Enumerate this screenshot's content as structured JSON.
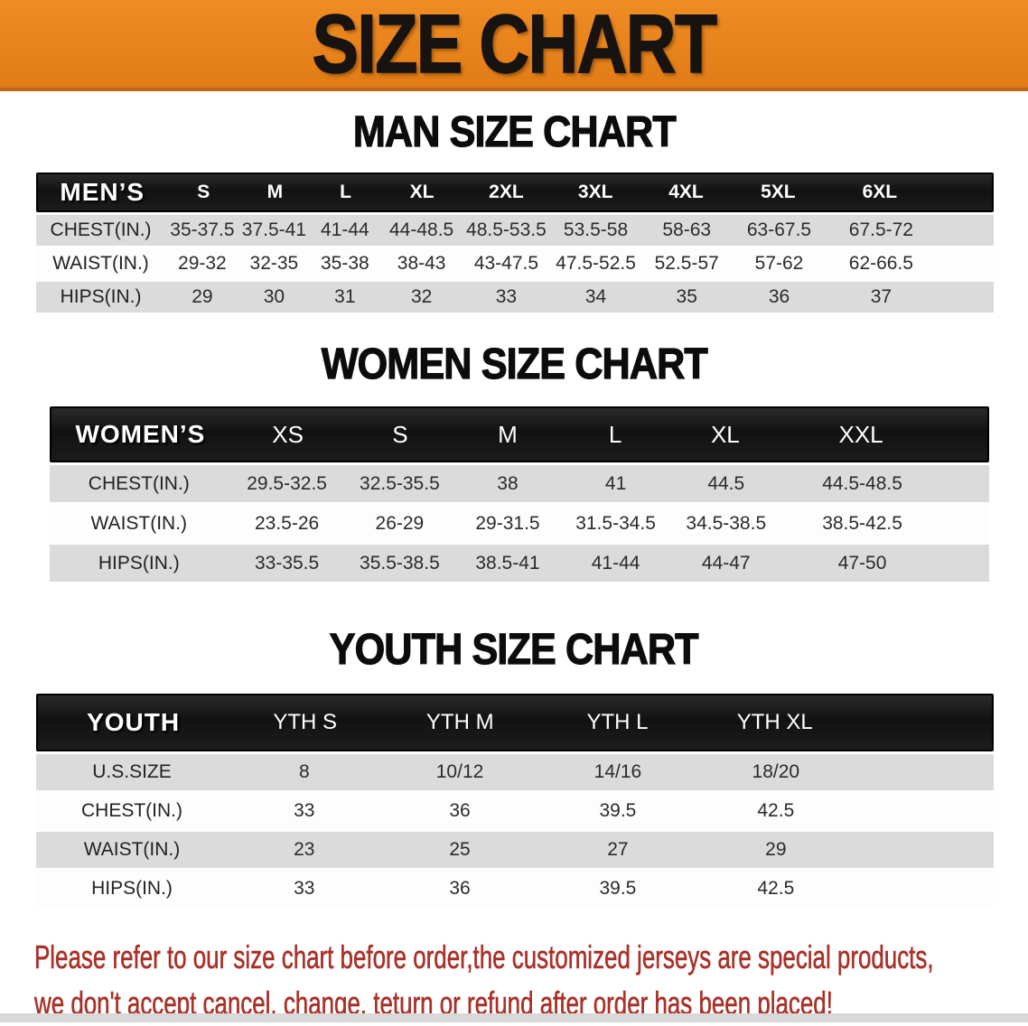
{
  "banner": {
    "title": "SIZE CHART",
    "bg_color": "#E8821B",
    "text_color": "#161310"
  },
  "sections": [
    {
      "id": "man",
      "title": "MAN SIZE CHART",
      "table": {
        "header": {
          "label": "MEN’S",
          "sizes": [
            "S",
            "M",
            "L",
            "XL",
            "2XL",
            "3XL",
            "4XL",
            "5XL",
            "6XL"
          ]
        },
        "rows": [
          {
            "label": "CHEST(IN.)",
            "values": [
              "35-37.5",
              "37.5-41",
              "41-44",
              "44-48.5",
              "48.5-53.5",
              "53.5-58",
              "58-63",
              "63-67.5",
              "67.5-72"
            ]
          },
          {
            "label": "WAIST(IN.)",
            "values": [
              "29-32",
              "32-35",
              "35-38",
              "38-43",
              "43-47.5",
              "47.5-52.5",
              "52.5-57",
              "57-62",
              "62-66.5"
            ]
          },
          {
            "label": "HIPS(IN.)",
            "values": [
              "29",
              "30",
              "31",
              "32",
              "33",
              "34",
              "35",
              "36",
              "37"
            ]
          }
        ]
      }
    },
    {
      "id": "women",
      "title": "WOMEN SIZE CHART",
      "table": {
        "header": {
          "label": "WOMEN’S",
          "sizes": [
            "XS",
            "S",
            "M",
            "L",
            "XL",
            "XXL"
          ]
        },
        "rows": [
          {
            "label": "CHEST(IN.)",
            "values": [
              "29.5-32.5",
              "32.5-35.5",
              "38",
              "41",
              "44.5",
              "44.5-48.5"
            ]
          },
          {
            "label": "WAIST(IN.)",
            "values": [
              "23.5-26",
              "26-29",
              "29-31.5",
              "31.5-34.5",
              "34.5-38.5",
              "38.5-42.5"
            ]
          },
          {
            "label": "HIPS(IN.)",
            "values": [
              "33-35.5",
              "35.5-38.5",
              "38.5-41",
              "41-44",
              "44-47",
              "47-50"
            ]
          }
        ]
      }
    },
    {
      "id": "youth",
      "title": "YOUTH SIZE CHART",
      "table": {
        "header": {
          "label": "YOUTH",
          "sizes": [
            "YTH S",
            "YTH M",
            "YTH L",
            "YTH XL"
          ]
        },
        "rows": [
          {
            "label": "U.S.SIZE",
            "values": [
              "8",
              "10/12",
              "14/16",
              "18/20"
            ]
          },
          {
            "label": "CHEST(IN.)",
            "values": [
              "33",
              "36",
              "39.5",
              "42.5"
            ]
          },
          {
            "label": "WAIST(IN.)",
            "values": [
              "23",
              "25",
              "27",
              "29"
            ]
          },
          {
            "label": "HIPS(IN.)",
            "values": [
              "33",
              "36",
              "39.5",
              "42.5"
            ]
          }
        ]
      }
    }
  ],
  "note": {
    "color": "#A93128",
    "lines": [
      "Please refer to our size chart before order,the customized jerseys are special products,",
      "we don't accept cancel, change, teturn or refund after order has been placed!"
    ]
  },
  "table_colors": {
    "header_bg": "#161616",
    "header_text": "#FFFFFF",
    "stripe_gray": "#DBDBDB",
    "stripe_white": "#FDFDFD"
  }
}
